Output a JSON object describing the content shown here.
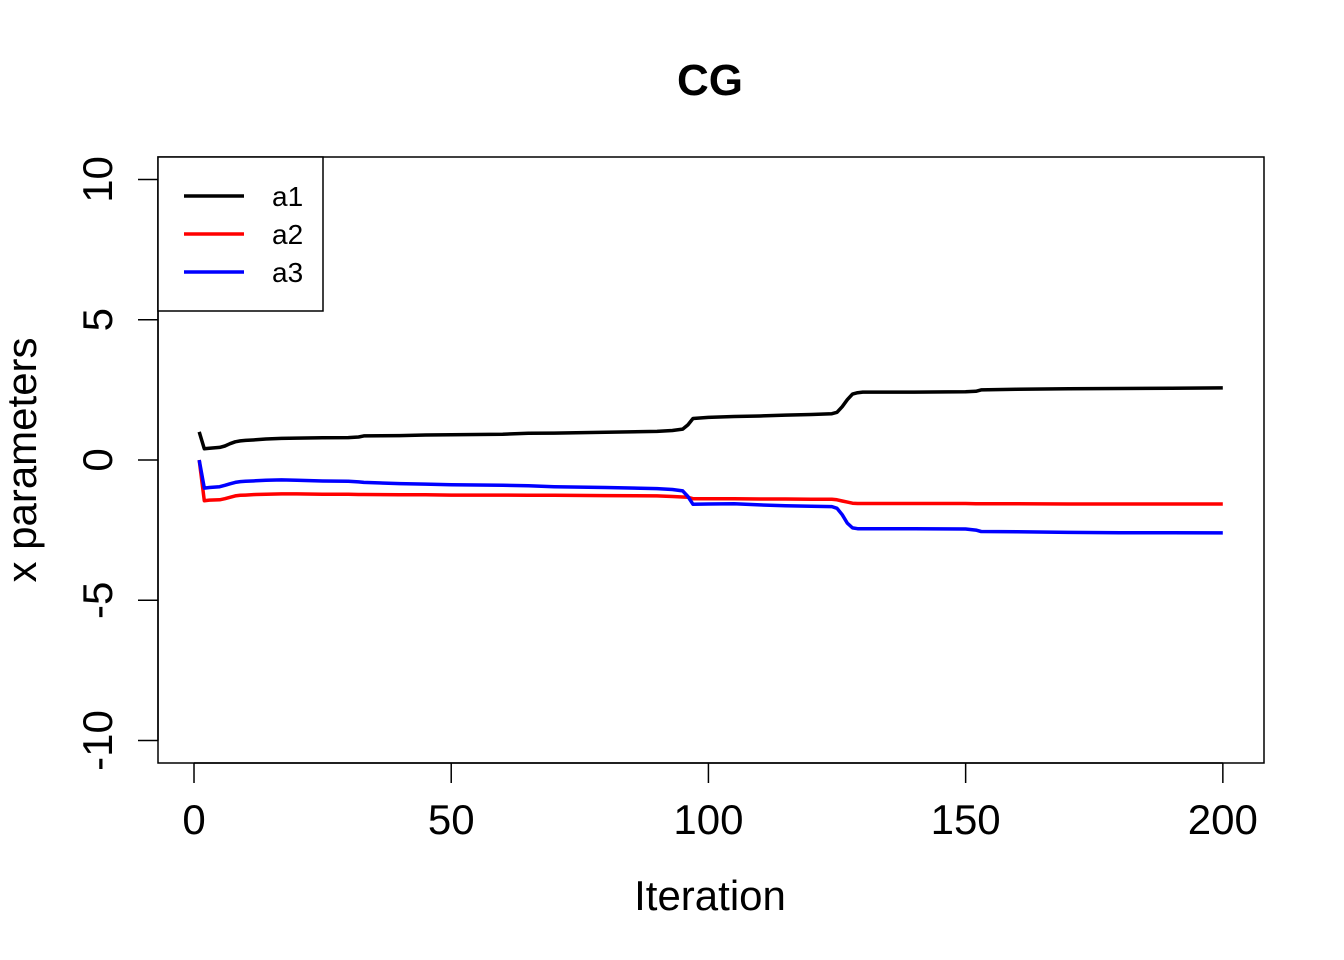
{
  "chart_data": {
    "type": "line",
    "title": "CG",
    "xlabel": "Iteration",
    "ylabel": "x parameters",
    "xlim": [
      1,
      200
    ],
    "ylim": [
      -10.8,
      10.8
    ],
    "xticks": [
      0,
      50,
      100,
      150,
      200
    ],
    "yticks": [
      -10,
      -5,
      0,
      5,
      10
    ],
    "xtick_labels": [
      "0",
      "50",
      "100",
      "150",
      "200"
    ],
    "ytick_labels": [
      "-10",
      "-5",
      "0",
      "5",
      "10"
    ],
    "grid": false,
    "legend_position": "top-left",
    "x": [
      1,
      2,
      3,
      5,
      6,
      7,
      8,
      9,
      10,
      12,
      14,
      17,
      20,
      25,
      30,
      32,
      33,
      40,
      45,
      50,
      60,
      65,
      70,
      80,
      90,
      93,
      95,
      96,
      97,
      100,
      105,
      110,
      115,
      120,
      124,
      125,
      126,
      127,
      128,
      129,
      130,
      140,
      150,
      152,
      153,
      160,
      170,
      180,
      190,
      200
    ],
    "series": [
      {
        "name": "a1",
        "color": "#000000",
        "values": [
          1.0,
          0.4,
          0.42,
          0.45,
          0.5,
          0.58,
          0.65,
          0.68,
          0.7,
          0.72,
          0.75,
          0.77,
          0.78,
          0.79,
          0.8,
          0.82,
          0.86,
          0.87,
          0.89,
          0.9,
          0.92,
          0.95,
          0.96,
          0.99,
          1.02,
          1.05,
          1.1,
          1.25,
          1.48,
          1.52,
          1.55,
          1.57,
          1.6,
          1.62,
          1.65,
          1.7,
          1.9,
          2.15,
          2.35,
          2.4,
          2.42,
          2.42,
          2.43,
          2.45,
          2.5,
          2.52,
          2.54,
          2.55,
          2.56,
          2.57
        ]
      },
      {
        "name": "a2",
        "color": "#ff0000",
        "values": [
          0.0,
          -1.45,
          -1.43,
          -1.42,
          -1.38,
          -1.33,
          -1.28,
          -1.26,
          -1.25,
          -1.23,
          -1.22,
          -1.21,
          -1.21,
          -1.22,
          -1.22,
          -1.23,
          -1.23,
          -1.24,
          -1.24,
          -1.25,
          -1.25,
          -1.26,
          -1.26,
          -1.27,
          -1.28,
          -1.3,
          -1.32,
          -1.33,
          -1.38,
          -1.38,
          -1.38,
          -1.39,
          -1.39,
          -1.4,
          -1.4,
          -1.42,
          -1.46,
          -1.5,
          -1.54,
          -1.55,
          -1.55,
          -1.55,
          -1.55,
          -1.56,
          -1.56,
          -1.56,
          -1.57,
          -1.57,
          -1.57,
          -1.57
        ]
      },
      {
        "name": "a3",
        "color": "#0000ff",
        "values": [
          0.0,
          -1.0,
          -0.98,
          -0.95,
          -0.9,
          -0.85,
          -0.8,
          -0.77,
          -0.76,
          -0.74,
          -0.72,
          -0.71,
          -0.72,
          -0.75,
          -0.76,
          -0.78,
          -0.8,
          -0.84,
          -0.86,
          -0.88,
          -0.9,
          -0.92,
          -0.95,
          -0.98,
          -1.02,
          -1.05,
          -1.1,
          -1.3,
          -1.58,
          -1.57,
          -1.56,
          -1.6,
          -1.63,
          -1.65,
          -1.66,
          -1.72,
          -1.95,
          -2.25,
          -2.42,
          -2.45,
          -2.45,
          -2.45,
          -2.46,
          -2.5,
          -2.55,
          -2.56,
          -2.58,
          -2.59,
          -2.59,
          -2.6
        ]
      }
    ]
  }
}
